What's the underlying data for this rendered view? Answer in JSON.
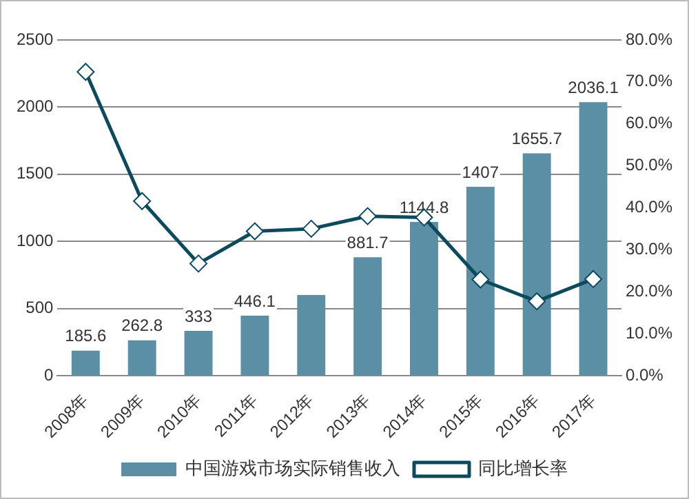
{
  "chart_data": {
    "type": "bar",
    "categories": [
      "2008年",
      "2009年",
      "2010年",
      "2011年",
      "2012年",
      "2013年",
      "2014年",
      "2015年",
      "2016年",
      "2017年"
    ],
    "series": [
      {
        "name": "中国游戏市场实际销售收入",
        "color": "#5b8fa6",
        "values": [
          185.6,
          262.8,
          333,
          446.1,
          600,
          881.7,
          1144.8,
          1407,
          1655.7,
          2036.1
        ],
        "value_labels": [
          "185.6",
          "262.8",
          "333",
          "446.1",
          null,
          "881.7",
          "1144.8",
          "1407",
          "1655.7",
          "2036.1"
        ]
      },
      {
        "name": "同比增长率",
        "type": "line",
        "axis": "y2",
        "color": "#0d4a5e",
        "values": [
          72.4,
          41.6,
          26.7,
          34.4,
          35.0,
          38.0,
          37.7,
          22.9,
          17.7,
          23.0
        ]
      }
    ],
    "ylim": [
      0,
      2500
    ],
    "yticks": [
      0,
      500,
      1000,
      1500,
      2000,
      2500
    ],
    "y2lim": [
      0,
      80
    ],
    "y2ticks": [
      {
        "value": 0,
        "label": "0.0%"
      },
      {
        "value": 10,
        "label": "10.0%"
      },
      {
        "value": 20,
        "label": "20.0%"
      },
      {
        "value": 30,
        "label": "30.0%"
      },
      {
        "value": 40,
        "label": "40.0%"
      },
      {
        "value": 50,
        "label": "50.0%"
      },
      {
        "value": 60,
        "label": "60.0%"
      },
      {
        "value": 70,
        "label": "70.0%"
      },
      {
        "value": 80,
        "label": "80.0%"
      }
    ],
    "grid": "y",
    "legend": "bottom",
    "marker": "diamond",
    "line_style": "solid"
  }
}
